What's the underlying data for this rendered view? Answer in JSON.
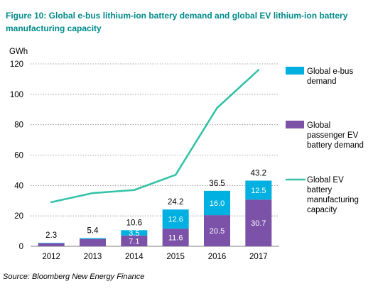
{
  "title_lines": [
    "Figure 10: Global e-bus lithium-ion battery demand and global EV lithium-ion battery",
    "manufacturing capacity"
  ],
  "source": "Source: Bloomberg New Energy Finance",
  "colors": {
    "title": "#008a8a",
    "ebus": "#00b0e0",
    "passenger": "#7b52a8",
    "capacity": "#35c2a8",
    "grid": "#8c8c8c",
    "axis": "#7f7f7f"
  },
  "chart_data": {
    "type": "bar",
    "stacked": true,
    "ylabel": "GWh",
    "ylim": [
      0,
      120
    ],
    "yticks": [
      0,
      20,
      40,
      60,
      80,
      100,
      120
    ],
    "grid": true,
    "legend_position": "right",
    "categories": [
      "2012",
      "2013",
      "2014",
      "2015",
      "2016",
      "2017"
    ],
    "series": [
      {
        "name": "Global passenger EV battery demand",
        "legend_lines": [
          "Global",
          "passenger EV",
          "battery demand"
        ],
        "type": "bar",
        "color": "#7b52a8",
        "values": [
          2.0,
          4.8,
          7.1,
          11.6,
          20.5,
          30.7
        ],
        "labels": [
          "",
          "",
          "7.1",
          "11.6",
          "20.5",
          "30.7"
        ]
      },
      {
        "name": "Global e-bus demand",
        "legend_lines": [
          "Global e-bus",
          "demand"
        ],
        "type": "bar",
        "color": "#00b0e0",
        "values": [
          0.3,
          0.6,
          3.5,
          12.6,
          16.0,
          12.5
        ],
        "labels": [
          "",
          "",
          "3.5",
          "12.6",
          "16.0",
          "12.5"
        ]
      },
      {
        "name": "Global EV battery manufacturing capacity",
        "legend_lines": [
          "Global EV",
          "battery",
          "manufacturing",
          "capacity"
        ],
        "type": "line",
        "color": "#35c2a8",
        "values": [
          29,
          35,
          37,
          47,
          91,
          116
        ]
      }
    ],
    "totals": [
      "2.3",
      "5.4",
      "10.6",
      "24.2",
      "36.5",
      "43.2"
    ]
  }
}
